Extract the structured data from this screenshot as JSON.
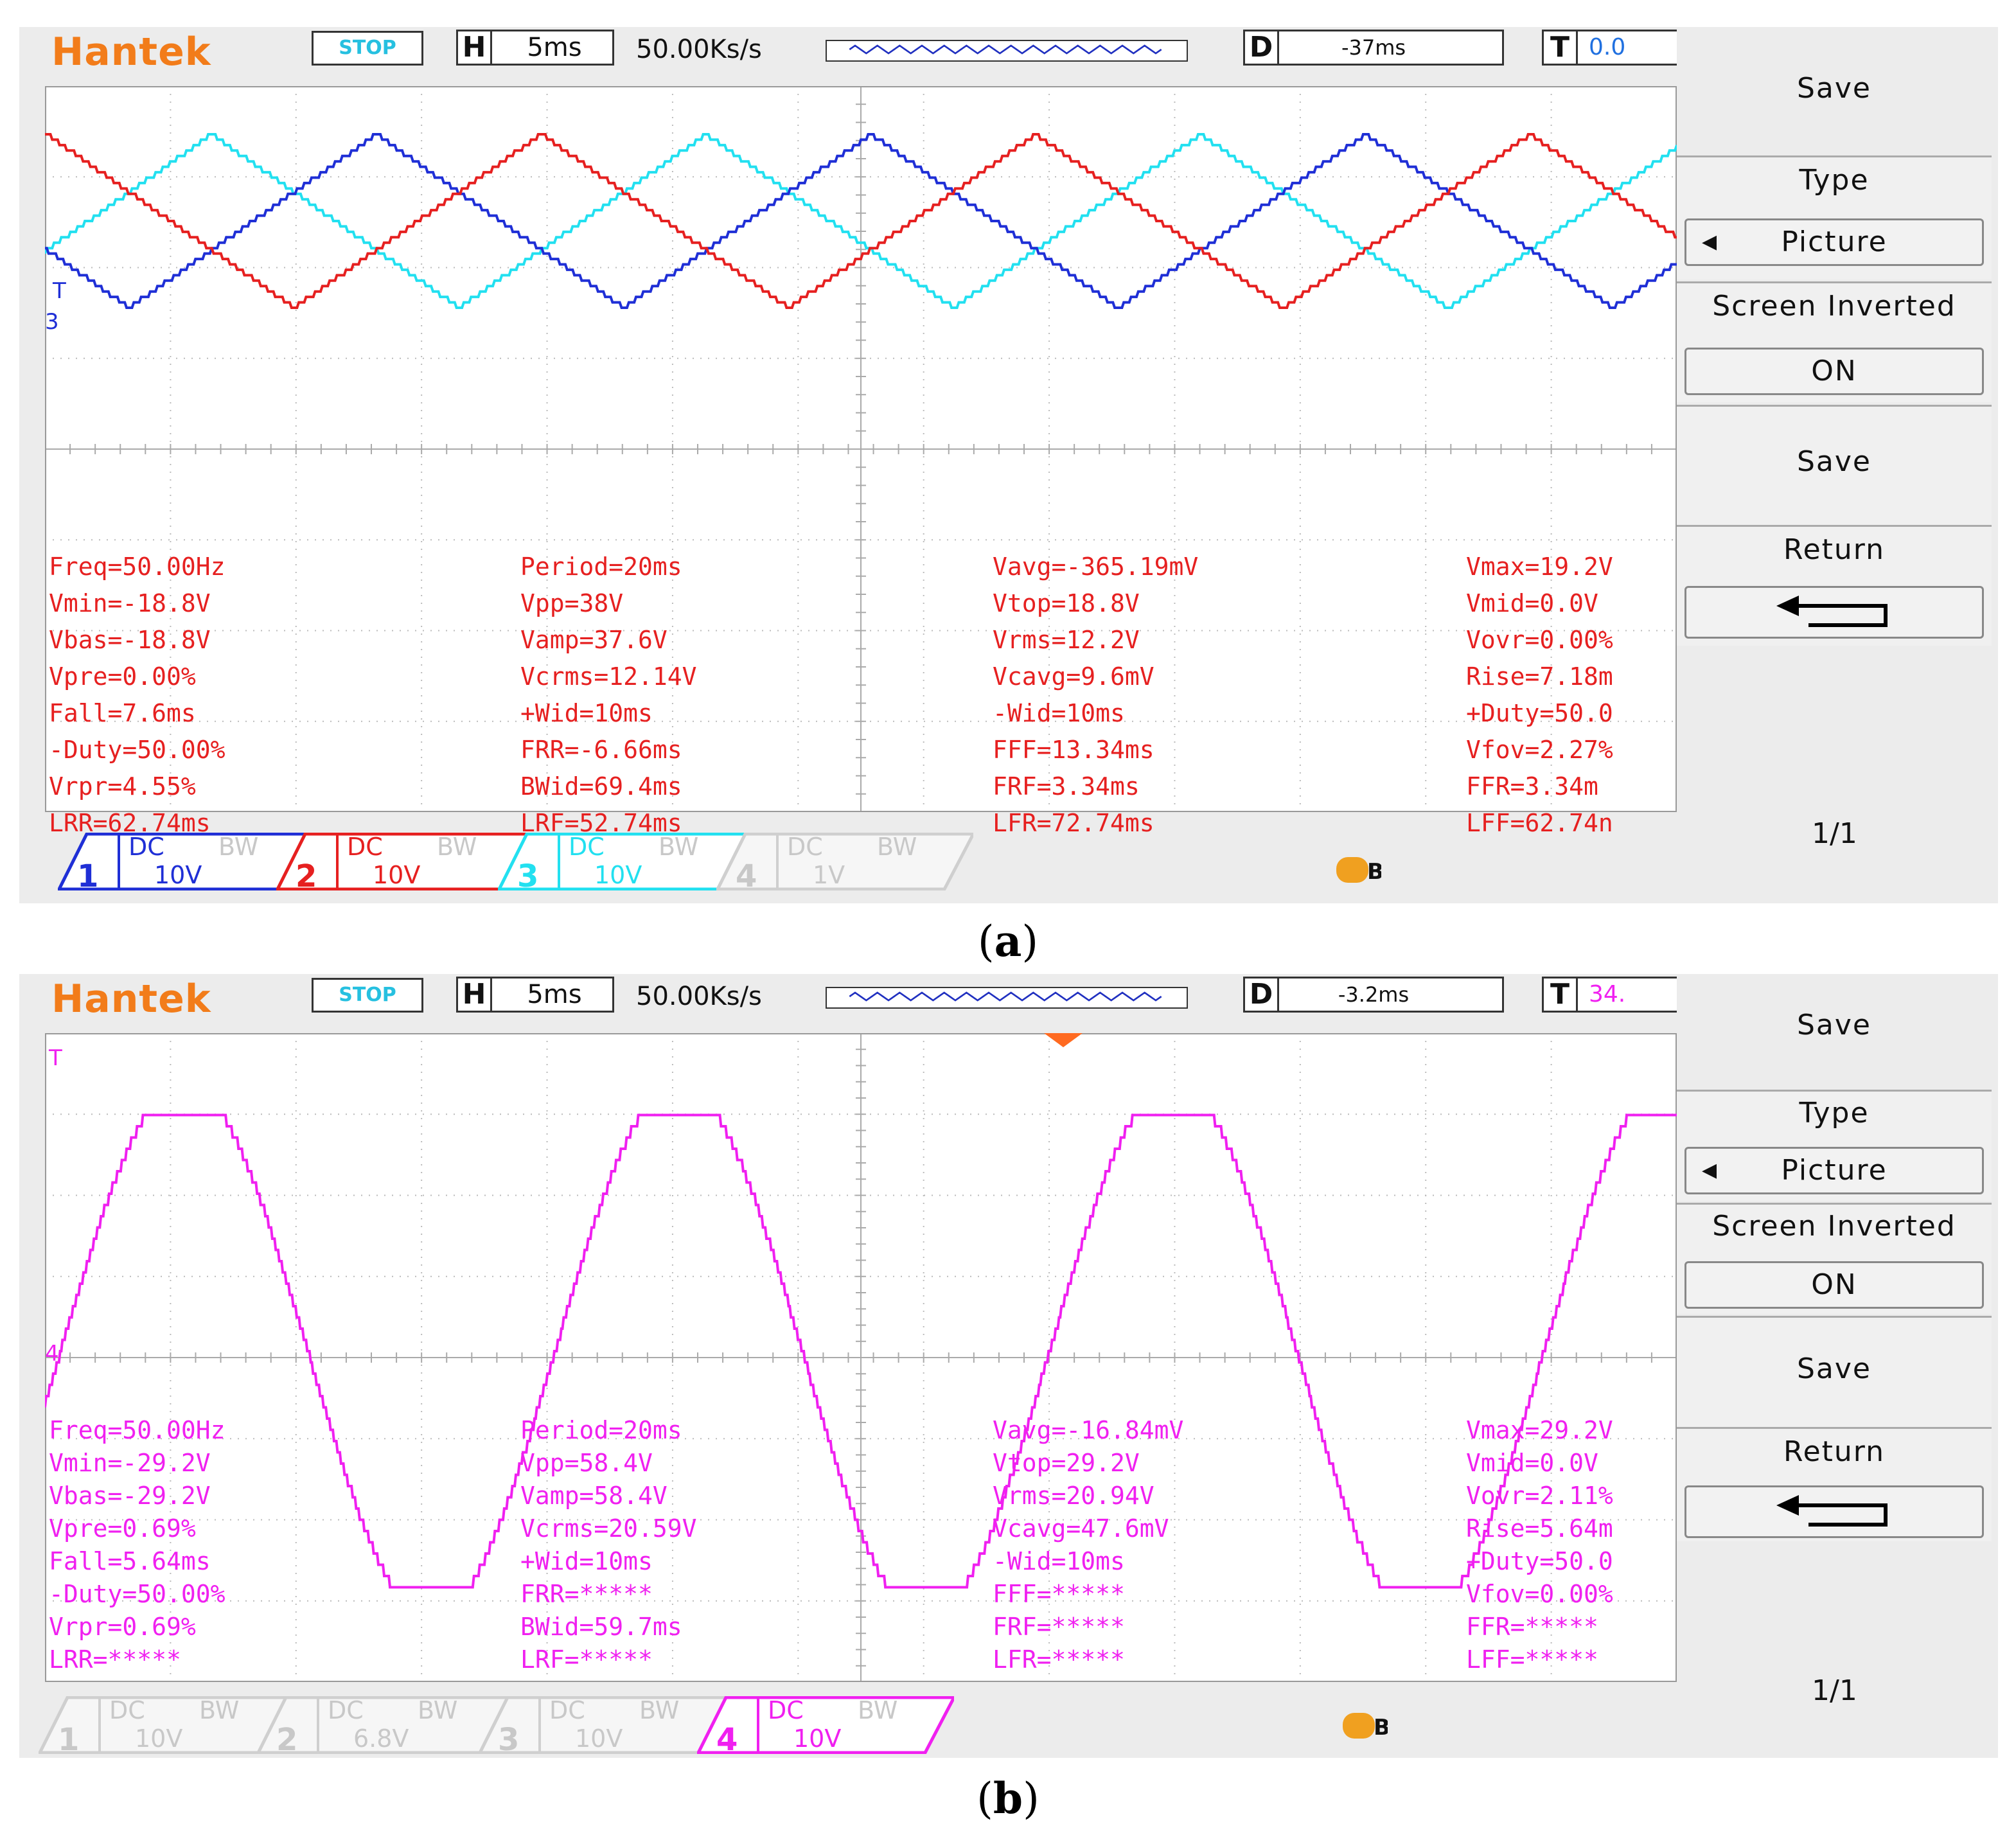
{
  "panels": [
    {
      "id": "a",
      "logo": "Hantek",
      "status": "STOP",
      "h_label": "H",
      "h_value": "5ms",
      "sample_rate": "50.00Ks/s",
      "d_label": "D",
      "d_value": "-37ms",
      "t_label": "T",
      "t_value": "0.0",
      "measurements": [
        [
          "Freq=50.00Hz",
          "Period=20ms",
          "Vavg=-365.19mV",
          "Vmax=19.2V"
        ],
        [
          "Vmin=-18.8V",
          "Vpp=38V",
          "Vtop=18.8V",
          "Vmid=0.0V"
        ],
        [
          "Vbas=-18.8V",
          "Vamp=37.6V",
          "Vrms=12.2V",
          "Vovr=0.00%"
        ],
        [
          "Vpre=0.00%",
          "Vcrms=12.14V",
          "Vcavg=9.6mV",
          "Rise=7.18m"
        ],
        [
          "Fall=7.6ms",
          "+Wid=10ms",
          "-Wid=10ms",
          "+Duty=50.0"
        ],
        [
          "-Duty=50.00%",
          "FRR=-6.66ms",
          "FFF=13.34ms",
          "Vfov=2.27%"
        ],
        [
          "Vrpr=4.55%",
          "BWid=69.4ms",
          "FRF=3.34ms",
          "FFR=3.34m"
        ],
        [
          "LRR=62.74ms",
          "LRF=52.74ms",
          "LFR=72.74ms",
          "LFF=62.74n"
        ]
      ],
      "measure_color": "#e62020",
      "channels": [
        {
          "num": "1",
          "coupling": "DC",
          "bw": "BW",
          "volts": "10V",
          "color": "#1f2fd6",
          "active": true
        },
        {
          "num": "2",
          "coupling": "DC",
          "bw": "BW",
          "volts": "10V",
          "color": "#e62020",
          "active": true
        },
        {
          "num": "3",
          "coupling": "DC",
          "bw": "BW",
          "volts": "10V",
          "color": "#22e0f0",
          "active": true
        },
        {
          "num": "4",
          "coupling": "DC",
          "bw": "BW",
          "volts": "1V",
          "color": "#d8d8d8",
          "active": false
        }
      ],
      "menu": {
        "save_title": "Save",
        "type_label": "Type",
        "type_value": "Picture",
        "inverted_label": "Screen Inverted",
        "inverted_value": "ON",
        "save_button": "Save",
        "return_label": "Return",
        "page": "1/1"
      },
      "caption_open": "(",
      "caption_letter": "a",
      "caption_close": ")",
      "trace_markers": {
        "t": "T",
        "ch": "3"
      }
    },
    {
      "id": "b",
      "logo": "Hantek",
      "status": "STOP",
      "h_label": "H",
      "h_value": "5ms",
      "sample_rate": "50.00Ks/s",
      "d_label": "D",
      "d_value": "-3.2ms",
      "t_label": "T",
      "t_value": "34.",
      "measurements": [
        [
          "Freq=50.00Hz",
          "Period=20ms",
          "Vavg=-16.84mV",
          "Vmax=29.2V"
        ],
        [
          "Vmin=-29.2V",
          "Vpp=58.4V",
          "Vtop=29.2V",
          "Vmid=0.0V"
        ],
        [
          "Vbas=-29.2V",
          "Vamp=58.4V",
          "Vrms=20.94V",
          "Vovr=2.11%"
        ],
        [
          "Vpre=0.69%",
          "Vcrms=20.59V",
          "Vcavg=47.6mV",
          "Rise=5.64m"
        ],
        [
          "Fall=5.64ms",
          "+Wid=10ms",
          "-Wid=10ms",
          "+Duty=50.0"
        ],
        [
          "-Duty=50.00%",
          "FRR=*****",
          "FFF=*****",
          "Vfov=0.00%"
        ],
        [
          "Vrpr=0.69%",
          "BWid=59.7ms",
          "FRF=*****",
          "FFR=*****"
        ],
        [
          "LRR=*****",
          "LRF=*****",
          "LFR=*****",
          "LFF=*****"
        ]
      ],
      "measure_color": "#f020f0",
      "channels": [
        {
          "num": "1",
          "coupling": "DC",
          "bw": "BW",
          "volts": "10V",
          "color": "#d8d8d8",
          "active": false
        },
        {
          "num": "2",
          "coupling": "DC",
          "bw": "BW",
          "volts": "6.8V",
          "color": "#d8d8d8",
          "active": false
        },
        {
          "num": "3",
          "coupling": "DC",
          "bw": "BW",
          "volts": "10V",
          "color": "#d8d8d8",
          "active": false
        },
        {
          "num": "4",
          "coupling": "DC",
          "bw": "BW",
          "volts": "10V",
          "color": "#f020f0",
          "active": true
        }
      ],
      "menu": {
        "save_title": "Save",
        "type_label": "Type",
        "type_value": "Picture",
        "inverted_label": "Screen Inverted",
        "inverted_value": "ON",
        "save_button": "Save",
        "return_label": "Return",
        "page": "1/1"
      },
      "caption_open": "(",
      "caption_letter": "b",
      "caption_close": ")",
      "trace_markers": {
        "t": "T",
        "ch": "4"
      }
    }
  ],
  "colors": {
    "ch1": "#1f2fd6",
    "ch2": "#e62020",
    "ch3": "#22e0f0",
    "ch4": "#f020f0",
    "logo": "#f27c1a",
    "stop": "#26c0e0"
  }
}
